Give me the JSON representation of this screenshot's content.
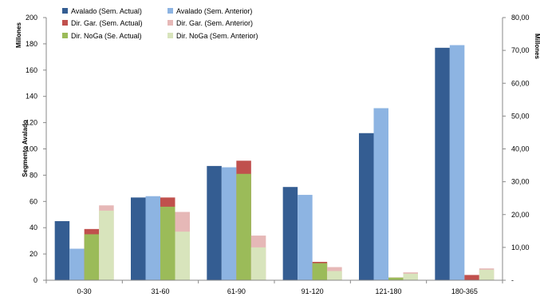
{
  "chart_data": {
    "type": "bar",
    "stacked_groups": true,
    "categories": [
      "0-30",
      "31-60",
      "61-90",
      "91-120",
      "121-180",
      "180-365"
    ],
    "left_axis": {
      "unit_label": "Millones",
      "title": "Segmento Avalado",
      "ylim": [
        0,
        200
      ],
      "ticks": [
        "0",
        "20",
        "40",
        "60",
        "80",
        "100",
        "120",
        "140",
        "160",
        "180",
        "200"
      ]
    },
    "right_axis": {
      "unit_label": "Millones",
      "ylim": [
        0,
        80
      ],
      "ticks": [
        "-",
        "10,00",
        "20,00",
        "30,00",
        "40,00",
        "50,00",
        "60,00",
        "70,00",
        "80,00"
      ]
    },
    "series": [
      {
        "name": "Avalado (Sem. Actual)",
        "color": "#345d92",
        "axis": "left",
        "values": [
          45,
          63,
          87,
          71,
          112,
          177
        ]
      },
      {
        "name": "Avalado (Sem. Anterior)",
        "color": "#8db4e2",
        "axis": "left",
        "values": [
          24,
          64,
          86,
          65,
          131,
          179
        ]
      },
      {
        "name": "Dir. Gar. (Sem. Actual)",
        "color": "#c0504d",
        "axis": "left",
        "values": [
          39,
          63,
          91,
          14,
          2,
          4
        ]
      },
      {
        "name": "Dir. Gar. (Sem. Anterior)",
        "color": "#e6b8b7",
        "axis": "left",
        "values": [
          57,
          52,
          34,
          10,
          6,
          9
        ]
      },
      {
        "name": "Dir. NoGa (Se. Actual)",
        "color": "#9bbb59",
        "axis": "left",
        "values": [
          35,
          56,
          81,
          13,
          2,
          0
        ]
      },
      {
        "name": "Dir. NoGa (Sem. Anterior)",
        "color": "#d8e4bc",
        "axis": "left",
        "values": [
          53,
          37,
          25,
          7,
          5,
          8
        ]
      }
    ],
    "grid": false,
    "legend_position": "top-left"
  }
}
